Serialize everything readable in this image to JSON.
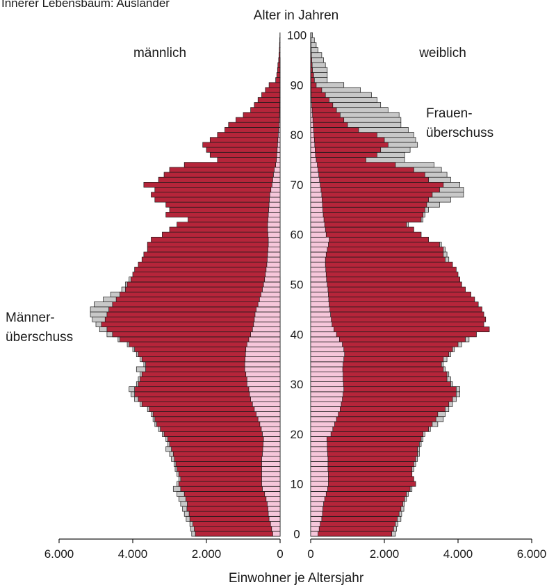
{
  "chart_data": {
    "type": "bar",
    "orientation": "horizontal-pyramid",
    "title": "Innerer Lebensbaum: Ausländer",
    "age_axis_label": "Alter in Jahren",
    "xlabel": "Einwohner je Altersjahr",
    "xlim": [
      0,
      6000
    ],
    "x_ticks": [
      "6.000",
      "4.000",
      "2.000",
      "0",
      "0",
      "2.000",
      "4.000",
      "6.000"
    ],
    "age_ticks": [
      "0",
      "10",
      "20",
      "30",
      "40",
      "50",
      "60",
      "70",
      "80",
      "90",
      "100"
    ],
    "side_labels": {
      "left": "männlich",
      "right": "weiblich"
    },
    "annotations": {
      "male_surplus": [
        "Männer-",
        "überschuss"
      ],
      "female_surplus": [
        "Frauen-",
        "überschuss"
      ]
    },
    "colors": {
      "total": "#b5253a",
      "foreigners": "#f6c6da",
      "surplus": "#c8c8c8",
      "outline": "#1a1a1a"
    },
    "ages": [
      0,
      1,
      2,
      3,
      4,
      5,
      6,
      7,
      8,
      9,
      10,
      11,
      12,
      13,
      14,
      15,
      16,
      17,
      18,
      19,
      20,
      21,
      22,
      23,
      24,
      25,
      26,
      27,
      28,
      29,
      30,
      31,
      32,
      33,
      34,
      35,
      36,
      37,
      38,
      39,
      40,
      41,
      42,
      43,
      44,
      45,
      46,
      47,
      48,
      49,
      50,
      51,
      52,
      53,
      54,
      55,
      56,
      57,
      58,
      59,
      60,
      61,
      62,
      63,
      64,
      65,
      66,
      67,
      68,
      69,
      70,
      71,
      72,
      73,
      74,
      75,
      76,
      77,
      78,
      79,
      80,
      81,
      82,
      83,
      84,
      85,
      86,
      87,
      88,
      89,
      90,
      91,
      92,
      93,
      94,
      95,
      96,
      97,
      98,
      99,
      100
    ],
    "male": [
      2300,
      2330,
      2370,
      2450,
      2470,
      2530,
      2520,
      2560,
      2600,
      2700,
      2750,
      2700,
      2750,
      2800,
      2830,
      2870,
      2900,
      2950,
      3000,
      3050,
      3150,
      3250,
      3350,
      3400,
      3450,
      3550,
      3750,
      3850,
      3950,
      3950,
      3850,
      3800,
      3750,
      3650,
      3650,
      3750,
      3850,
      3950,
      4100,
      4350,
      4550,
      4700,
      4850,
      4750,
      4700,
      4650,
      4550,
      4450,
      4350,
      4200,
      4150,
      4050,
      4000,
      3950,
      3850,
      3750,
      3700,
      3600,
      3600,
      3500,
      3200,
      3000,
      2800,
      2500,
      3100,
      3000,
      3100,
      3400,
      3500,
      3400,
      3700,
      3300,
      3150,
      3000,
      2600,
      1700,
      1900,
      2000,
      2100,
      1900,
      1700,
      1500,
      1400,
      1200,
      1000,
      800,
      700,
      600,
      500,
      400,
      300,
      120,
      90,
      70,
      60,
      40,
      30,
      20,
      15,
      10,
      5
    ],
    "male_surplus": [
      2400,
      2430,
      2450,
      2550,
      2600,
      2650,
      2700,
      2750,
      2800,
      2900,
      2800,
      2750,
      2800,
      2850,
      2880,
      2950,
      3000,
      3100,
      3050,
      3100,
      3200,
      3300,
      3400,
      3450,
      3500,
      3600,
      3800,
      3950,
      4050,
      4100,
      3900,
      3850,
      3800,
      3900,
      3700,
      3800,
      3900,
      4000,
      4150,
      4400,
      4700,
      4900,
      5000,
      5100,
      5150,
      5150,
      5050,
      4800,
      4600,
      4300,
      4200,
      4100,
      4000,
      3950,
      3850,
      3750,
      3700,
      3600,
      3600,
      3500,
      3200,
      3000,
      2800,
      2500,
      3100,
      3000,
      3100,
      3400,
      3500,
      3400,
      3700,
      3300,
      3150,
      3000,
      2600,
      1700,
      1900,
      2000,
      2100,
      1900,
      1700,
      1500,
      1400,
      1200,
      1000,
      800,
      700,
      600,
      500,
      400,
      300,
      120,
      90,
      70,
      60,
      40,
      30,
      20,
      15,
      10,
      5
    ],
    "male_foreigners": [
      200,
      230,
      260,
      300,
      320,
      330,
      350,
      380,
      420,
      480,
      500,
      500,
      500,
      500,
      500,
      500,
      480,
      470,
      460,
      450,
      480,
      510,
      550,
      600,
      650,
      700,
      750,
      800,
      830,
      850,
      900,
      900,
      930,
      960,
      960,
      950,
      940,
      930,
      900,
      850,
      800,
      750,
      720,
      700,
      680,
      650,
      600,
      560,
      520,
      480,
      450,
      420,
      400,
      380,
      360,
      350,
      340,
      330,
      320,
      320,
      330,
      340,
      340,
      330,
      320,
      310,
      300,
      290,
      280,
      250,
      220,
      200,
      180,
      160,
      120,
      100,
      90,
      80,
      70,
      60,
      50,
      40,
      30,
      20,
      15,
      10,
      8,
      5,
      4,
      3,
      2,
      2,
      1,
      1,
      1,
      1,
      0,
      0,
      0,
      0,
      0
    ],
    "female": [
      2200,
      2250,
      2300,
      2350,
      2400,
      2450,
      2500,
      2550,
      2600,
      2700,
      2850,
      2800,
      2750,
      2750,
      2800,
      2850,
      2900,
      2900,
      2950,
      3000,
      3050,
      3200,
      3300,
      3400,
      3450,
      3650,
      3750,
      3850,
      3950,
      3950,
      3800,
      3700,
      3700,
      3600,
      3550,
      3600,
      3750,
      3850,
      4000,
      4200,
      4500,
      4850,
      4700,
      4750,
      4700,
      4650,
      4550,
      4450,
      4350,
      4200,
      4100,
      4050,
      4000,
      3950,
      3850,
      3650,
      3600,
      3600,
      3500,
      3200,
      3000,
      2800,
      2600,
      3000,
      3050,
      3100,
      3150,
      3200,
      3300,
      3500,
      3600,
      3200,
      3100,
      2800,
      2300,
      1500,
      1800,
      1900,
      2100,
      2000,
      1800,
      1300,
      1000,
      900,
      800,
      700,
      600,
      500,
      400,
      300,
      150,
      100,
      80,
      50,
      40,
      30,
      20,
      15,
      10,
      8,
      5
    ],
    "female_surplus": [
      2300,
      2330,
      2370,
      2450,
      2470,
      2530,
      2540,
      2600,
      2650,
      2750,
      2850,
      2800,
      2750,
      2800,
      2850,
      2900,
      2950,
      2950,
      3000,
      3050,
      3100,
      3250,
      3450,
      3600,
      3650,
      3750,
      3850,
      3950,
      4050,
      4050,
      3850,
      3800,
      3750,
      3650,
      3600,
      3700,
      3800,
      3900,
      4100,
      4300,
      4500,
      4850,
      4700,
      4750,
      4700,
      4650,
      4550,
      4450,
      4350,
      4200,
      4100,
      4050,
      4000,
      3950,
      3850,
      3750,
      3700,
      3650,
      3550,
      3200,
      2950,
      2800,
      2650,
      3050,
      3100,
      3200,
      3500,
      3800,
      4150,
      4150,
      4050,
      3800,
      3700,
      3550,
      3350,
      2550,
      2550,
      2700,
      2900,
      2850,
      2800,
      2650,
      2450,
      2450,
      2400,
      2100,
      1900,
      1800,
      1650,
      1350,
      900,
      450,
      450,
      450,
      400,
      350,
      300,
      200,
      150,
      100,
      50
    ],
    "female_foreigners": [
      200,
      230,
      260,
      300,
      320,
      330,
      350,
      380,
      420,
      460,
      480,
      480,
      480,
      470,
      470,
      470,
      460,
      450,
      450,
      440,
      550,
      600,
      650,
      700,
      750,
      800,
      830,
      860,
      880,
      900,
      890,
      880,
      880,
      870,
      880,
      900,
      920,
      900,
      860,
      780,
      700,
      630,
      580,
      560,
      540,
      520,
      500,
      490,
      480,
      470,
      450,
      430,
      420,
      410,
      400,
      400,
      420,
      450,
      480,
      500,
      420,
      400,
      380,
      360,
      340,
      330,
      320,
      310,
      300,
      280,
      260,
      240,
      220,
      200,
      180,
      150,
      130,
      120,
      110,
      100,
      90,
      80,
      70,
      60,
      50,
      40,
      30,
      20,
      15,
      10,
      8,
      5,
      4,
      3,
      2,
      2,
      1,
      1,
      1,
      1,
      0
    ]
  }
}
